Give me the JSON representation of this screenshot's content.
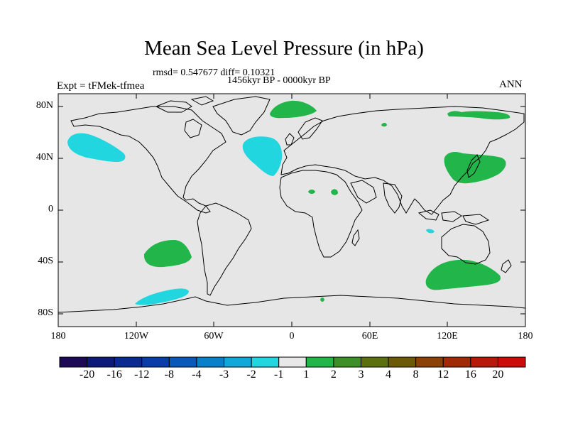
{
  "title": "Mean Sea Level Pressure (in hPa)",
  "stats": "rmsd= 0.547677 diff= 0.10321",
  "period": "1456kyr BP - 0000kyr BP",
  "experiment": "Expt = tFMek-tfmea",
  "season": "ANN",
  "y_axis_labels": [
    "80N",
    "40N",
    "0",
    "40S",
    "80S"
  ],
  "x_axis_labels": [
    "180",
    "120W",
    "60W",
    "0",
    "60E",
    "120E",
    "180"
  ],
  "colorbar": {
    "labels": [
      "-20",
      "-16",
      "-12",
      "-8",
      "-4",
      "-3",
      "-2",
      "-1",
      "1",
      "2",
      "3",
      "4",
      "8",
      "12",
      "16",
      "20"
    ],
    "colors": [
      "#1c0a55",
      "#0e1a7a",
      "#0a2a92",
      "#0a3da8",
      "#0a58b8",
      "#0a80c8",
      "#10a8d8",
      "#22d6e0",
      "#e8e8e8",
      "#22b54a",
      "#3f8f28",
      "#5c7010",
      "#6c5a08",
      "#8a4208",
      "#a02a08",
      "#b8180a",
      "#cc0a0a"
    ]
  },
  "colors": {
    "ocean_background": "#e6e6e6",
    "positive_anomaly": "#22b54a",
    "negative_anomaly": "#22d6e0",
    "coastline": "#000000"
  }
}
